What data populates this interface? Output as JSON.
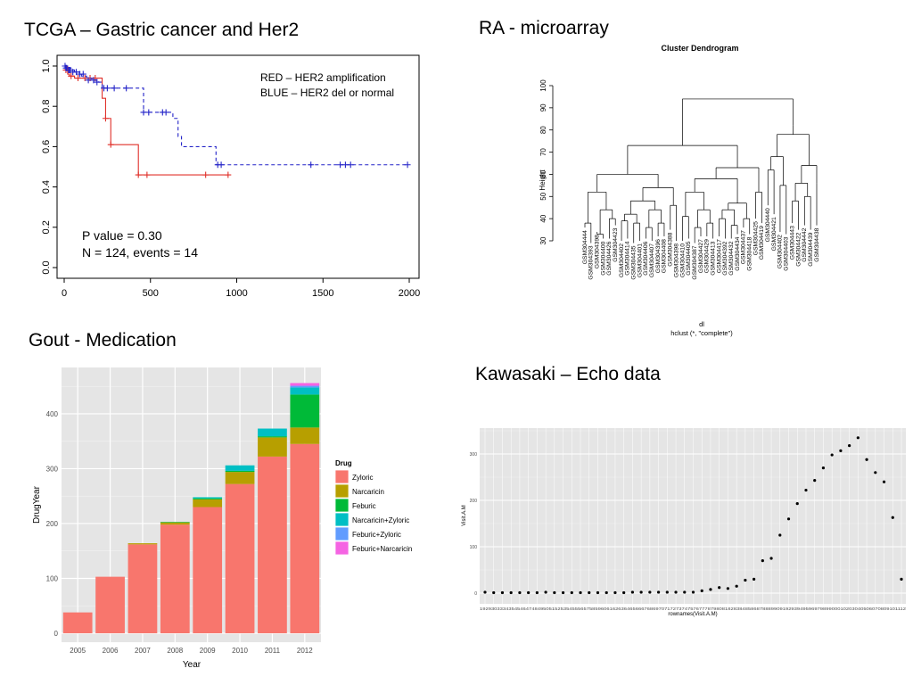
{
  "panels": {
    "km_title": "TCGA – Gastric cancer and Her2",
    "dendro_title": "RA - microarray",
    "gout_title": "Gout - Medication",
    "echo_title": "Kawasaki – Echo data"
  },
  "chart_data": [
    {
      "type": "line",
      "subtype": "kaplan-meier",
      "xlim": [
        0,
        2000
      ],
      "ylim": [
        0,
        1
      ],
      "x_ticks": [
        "0",
        "500",
        "1000",
        "1500",
        "2000"
      ],
      "y_ticks": [
        "0.0",
        "0.2",
        "0.4",
        "0.6",
        "0.8",
        "1.0"
      ],
      "legend_lines": [
        "RED – HER2 amplification",
        "BLUE – HER2 del or normal"
      ],
      "annotation_lines": [
        "P value = 0.30",
        "N = 124, events = 14"
      ],
      "series": [
        {
          "color": "#e0302a",
          "dash": "solid",
          "steps": [
            [
              0,
              1.0
            ],
            [
              20,
              0.96
            ],
            [
              30,
              0.95
            ],
            [
              60,
              0.94
            ],
            [
              200,
              0.94
            ],
            [
              220,
              0.84
            ],
            [
              240,
              0.74
            ],
            [
              270,
              0.61
            ],
            [
              430,
              0.61
            ],
            [
              430,
              0.46
            ],
            [
              950,
              0.46
            ]
          ],
          "censors": [
            [
              10,
              0.98
            ],
            [
              40,
              0.95
            ],
            [
              80,
              0.94
            ],
            [
              120,
              0.94
            ],
            [
              150,
              0.94
            ],
            [
              180,
              0.94
            ],
            [
              240,
              0.74
            ],
            [
              270,
              0.61
            ],
            [
              430,
              0.46
            ],
            [
              480,
              0.46
            ],
            [
              820,
              0.46
            ],
            [
              950,
              0.46
            ]
          ]
        },
        {
          "color": "#2323c8",
          "dash": "dashed",
          "steps": [
            [
              0,
              1.0
            ],
            [
              20,
              0.99
            ],
            [
              40,
              0.98
            ],
            [
              60,
              0.97
            ],
            [
              100,
              0.95
            ],
            [
              130,
              0.94
            ],
            [
              160,
              0.93
            ],
            [
              200,
              0.92
            ],
            [
              220,
              0.89
            ],
            [
              460,
              0.89
            ],
            [
              460,
              0.77
            ],
            [
              630,
              0.77
            ],
            [
              630,
              0.74
            ],
            [
              660,
              0.65
            ],
            [
              680,
              0.6
            ],
            [
              880,
              0.6
            ],
            [
              880,
              0.51
            ],
            [
              1990,
              0.51
            ]
          ],
          "censors": [
            [
              5,
              1.0
            ],
            [
              10,
              0.99
            ],
            [
              15,
              0.99
            ],
            [
              25,
              0.98
            ],
            [
              30,
              0.98
            ],
            [
              35,
              0.98
            ],
            [
              50,
              0.97
            ],
            [
              70,
              0.97
            ],
            [
              90,
              0.96
            ],
            [
              110,
              0.96
            ],
            [
              140,
              0.93
            ],
            [
              170,
              0.93
            ],
            [
              190,
              0.92
            ],
            [
              230,
              0.89
            ],
            [
              250,
              0.89
            ],
            [
              290,
              0.89
            ],
            [
              360,
              0.89
            ],
            [
              460,
              0.77
            ],
            [
              490,
              0.77
            ],
            [
              570,
              0.77
            ],
            [
              590,
              0.77
            ],
            [
              890,
              0.51
            ],
            [
              910,
              0.51
            ],
            [
              1430,
              0.51
            ],
            [
              1600,
              0.51
            ],
            [
              1630,
              0.51
            ],
            [
              1660,
              0.51
            ],
            [
              1990,
              0.51
            ]
          ]
        }
      ]
    },
    {
      "type": "dendrogram",
      "title": "Cluster Dendrogram",
      "ylabel": "Height",
      "xlabel": "dl",
      "sub": "hclust (*, \"complete\")",
      "y_ticks": [
        30,
        40,
        50,
        60,
        70,
        80,
        90,
        100
      ],
      "ylim": [
        30,
        100
      ],
      "leaves": [
        "GSM304444",
        "GSM304393",
        "GSM304398",
        "GSM304400",
        "GSM304426",
        "GSM304423",
        "GSM304402",
        "GSM304414",
        "GSM304435",
        "GSM304401",
        "GSM304406",
        "GSM304407",
        "GSM304396",
        "GSM304408",
        "GSM304388",
        "GSM304398",
        "GSM304410",
        "GSM304405",
        "GSM304387",
        "GSM304427",
        "GSM304429",
        "GSM304413",
        "GSM304417",
        "GSM304392",
        "GSM304432",
        "GSM304434",
        "GSM304437",
        "GSM304418",
        "GSM304425",
        "GSM304419",
        "GSM304440",
        "GSM304421",
        "GSM304402",
        "GSM304403",
        "GSM304443",
        "GSM304422",
        "GSM304442",
        "GSM304439",
        "GSM304438"
      ]
    },
    {
      "type": "bar",
      "stacked": true,
      "xlabel": "Year",
      "ylabel": "DrugYear",
      "ylim": [
        0,
        460
      ],
      "y_ticks": [
        0,
        100,
        200,
        300,
        400
      ],
      "categories": [
        "2005",
        "2006",
        "2007",
        "2008",
        "2009",
        "2010",
        "2011",
        "2012"
      ],
      "legend_title": "Drug",
      "series": [
        {
          "name": "Zyloric",
          "color": "#f8766d",
          "values": [
            38,
            103,
            162,
            198,
            230,
            272,
            322,
            345
          ]
        },
        {
          "name": "Narcaricin",
          "color": "#b79f00",
          "values": [
            0,
            0,
            2,
            4,
            14,
            22,
            35,
            30
          ]
        },
        {
          "name": "Feburic",
          "color": "#00ba38",
          "values": [
            0,
            0,
            0,
            1,
            2,
            2,
            2,
            60
          ]
        },
        {
          "name": "Narcaricin+Zyloric",
          "color": "#00bfc4",
          "values": [
            0,
            0,
            0,
            0,
            2,
            10,
            14,
            13
          ]
        },
        {
          "name": "Feburic+Zyloric",
          "color": "#619cff",
          "values": [
            0,
            0,
            0,
            0,
            0,
            0,
            0,
            3
          ]
        },
        {
          "name": "Feburic+Narcaricin",
          "color": "#f564e3",
          "values": [
            0,
            0,
            0,
            0,
            0,
            0,
            0,
            5
          ]
        }
      ]
    },
    {
      "type": "scatter",
      "xlabel": "rownames(Visit.A.M)",
      "ylabel": "Visit.A.M",
      "ylim": [
        -10,
        360
      ],
      "y_ticks": [
        0,
        100,
        200,
        300
      ],
      "x_tick_text": "1929303334354546474849505152535455565758596061626364656667686970717273747576777879808182838485868788899091929394959697989900010203040506070809101112",
      "values": [
        2,
        1,
        1,
        1,
        1,
        1,
        1,
        2,
        1,
        1,
        1,
        1,
        1,
        1,
        1,
        1,
        1,
        2,
        2,
        2,
        2,
        2,
        2,
        2,
        2,
        5,
        8,
        12,
        10,
        15,
        28,
        30,
        70,
        75,
        125,
        160,
        193,
        222,
        243,
        270,
        298,
        307,
        318,
        335,
        288,
        260,
        240,
        163,
        30
      ]
    }
  ]
}
